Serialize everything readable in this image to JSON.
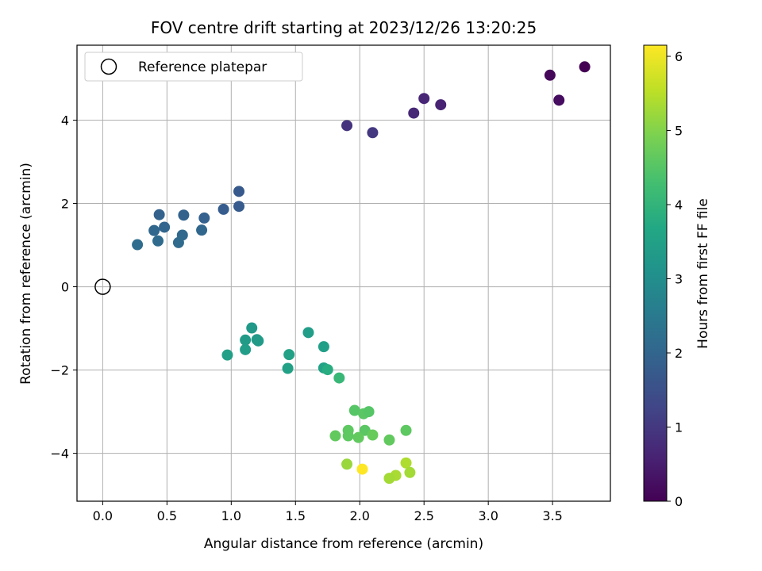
{
  "chart_data": {
    "type": "scatter",
    "title": "FOV centre drift starting at 2023/12/26 13:20:25",
    "xlabel": "Angular distance from reference (arcmin)",
    "ylabel": "Rotation from reference (arcmin)",
    "xlim": [
      -0.2,
      3.95
    ],
    "ylim": [
      -5.15,
      5.8
    ],
    "xticks": [
      0.0,
      0.5,
      1.0,
      1.5,
      2.0,
      2.5,
      3.0,
      3.5
    ],
    "xtick_labels": [
      "0.0",
      "0.5",
      "1.0",
      "1.5",
      "2.0",
      "2.5",
      "3.0",
      "3.5"
    ],
    "yticks": [
      -4,
      -2,
      0,
      2,
      4
    ],
    "ytick_labels": [
      "−4",
      "−2",
      "0",
      "2",
      "4"
    ],
    "grid": true,
    "legend": {
      "placement": "upper-left",
      "entries": [
        "Reference platepar"
      ]
    },
    "colorbar": {
      "label": "Hours from first FF file",
      "range": [
        0,
        6.15
      ],
      "ticks": [
        0,
        1,
        2,
        3,
        4,
        5,
        6
      ],
      "tick_labels": [
        "0",
        "1",
        "2",
        "3",
        "4",
        "5",
        "6"
      ],
      "colormap": "viridis"
    },
    "reference_point": {
      "x": 0.0,
      "y": 0.0
    },
    "series": [
      {
        "points": [
          {
            "x": 3.75,
            "y": 5.28,
            "c": 0.0
          },
          {
            "x": 3.48,
            "y": 5.08,
            "c": 0.1
          },
          {
            "x": 3.55,
            "y": 4.48,
            "c": 0.2
          },
          {
            "x": 2.63,
            "y": 4.37,
            "c": 0.6
          },
          {
            "x": 2.5,
            "y": 4.52,
            "c": 0.65
          },
          {
            "x": 2.42,
            "y": 4.17,
            "c": 0.7
          },
          {
            "x": 1.9,
            "y": 3.87,
            "c": 0.9
          },
          {
            "x": 2.1,
            "y": 3.7,
            "c": 1.0
          },
          {
            "x": 1.06,
            "y": 2.29,
            "c": 1.7
          },
          {
            "x": 1.06,
            "y": 1.93,
            "c": 1.75
          },
          {
            "x": 0.94,
            "y": 1.86,
            "c": 1.8
          },
          {
            "x": 0.79,
            "y": 1.65,
            "c": 1.9
          },
          {
            "x": 0.63,
            "y": 1.72,
            "c": 1.95
          },
          {
            "x": 0.44,
            "y": 1.73,
            "c": 1.95
          },
          {
            "x": 0.48,
            "y": 1.43,
            "c": 2.0
          },
          {
            "x": 0.4,
            "y": 1.35,
            "c": 2.05
          },
          {
            "x": 0.77,
            "y": 1.36,
            "c": 2.05
          },
          {
            "x": 0.62,
            "y": 1.24,
            "c": 2.1
          },
          {
            "x": 0.43,
            "y": 1.1,
            "c": 2.15
          },
          {
            "x": 0.59,
            "y": 1.06,
            "c": 2.15
          },
          {
            "x": 0.27,
            "y": 1.01,
            "c": 2.2
          },
          {
            "x": 1.16,
            "y": -0.99,
            "c": 3.3
          },
          {
            "x": 1.11,
            "y": -1.28,
            "c": 3.35
          },
          {
            "x": 1.2,
            "y": -1.27,
            "c": 3.3
          },
          {
            "x": 1.21,
            "y": -1.3,
            "c": 3.35
          },
          {
            "x": 1.11,
            "y": -1.51,
            "c": 3.4
          },
          {
            "x": 0.97,
            "y": -1.64,
            "c": 3.45
          },
          {
            "x": 1.6,
            "y": -1.1,
            "c": 3.4
          },
          {
            "x": 1.72,
            "y": -1.44,
            "c": 3.45
          },
          {
            "x": 1.45,
            "y": -1.63,
            "c": 3.5
          },
          {
            "x": 1.44,
            "y": -1.96,
            "c": 3.5
          },
          {
            "x": 1.72,
            "y": -1.95,
            "c": 3.55
          },
          {
            "x": 1.75,
            "y": -1.99,
            "c": 3.8
          },
          {
            "x": 1.84,
            "y": -2.19,
            "c": 4.1
          },
          {
            "x": 1.96,
            "y": -2.97,
            "c": 4.5
          },
          {
            "x": 2.03,
            "y": -3.05,
            "c": 4.55
          },
          {
            "x": 2.07,
            "y": -3.0,
            "c": 4.5
          },
          {
            "x": 1.91,
            "y": -3.45,
            "c": 4.6
          },
          {
            "x": 2.04,
            "y": -3.45,
            "c": 4.55
          },
          {
            "x": 2.36,
            "y": -3.45,
            "c": 4.6
          },
          {
            "x": 1.81,
            "y": -3.58,
            "c": 4.65
          },
          {
            "x": 1.91,
            "y": -3.58,
            "c": 4.6
          },
          {
            "x": 1.99,
            "y": -3.62,
            "c": 4.65
          },
          {
            "x": 2.1,
            "y": -3.56,
            "c": 4.7
          },
          {
            "x": 2.23,
            "y": -3.68,
            "c": 4.65
          },
          {
            "x": 1.9,
            "y": -4.26,
            "c": 5.2
          },
          {
            "x": 2.02,
            "y": -4.38,
            "c": 6.15
          },
          {
            "x": 2.36,
            "y": -4.23,
            "c": 5.4
          },
          {
            "x": 2.39,
            "y": -4.46,
            "c": 5.3
          },
          {
            "x": 2.28,
            "y": -4.53,
            "c": 5.35
          },
          {
            "x": 2.23,
            "y": -4.6,
            "c": 5.3
          }
        ]
      }
    ]
  }
}
